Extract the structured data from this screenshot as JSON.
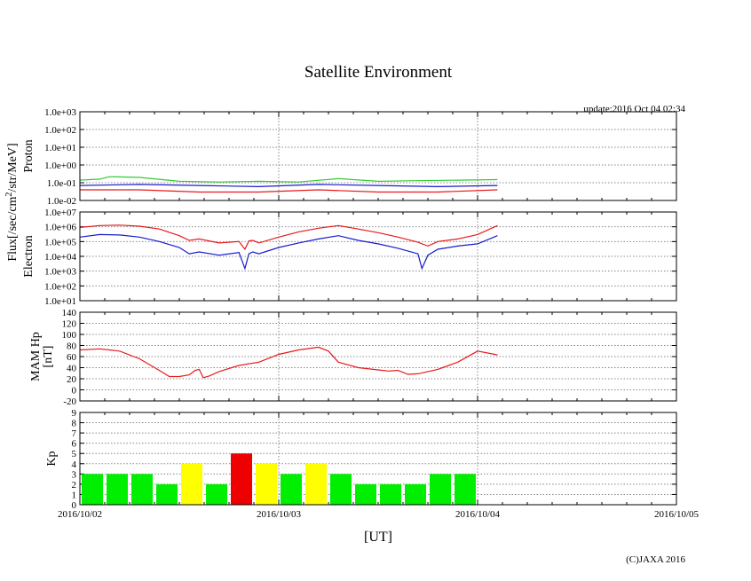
{
  "title": "Satellite Environment",
  "update": "update:2016 Oct 04 02:34",
  "copyright": "(C)JAXA 2016",
  "xlabel": "[UT]",
  "flux_label": "Flux[/sec/cm",
  "flux_sup": "2",
  "flux_label_tail": "/str/MeV]",
  "x_ticks": [
    "2016/10/02",
    "2016/10/03",
    "2016/10/04",
    "2016/10/05"
  ],
  "colors": {
    "red": "#e8191a",
    "blue": "#1a1acc",
    "green": "#33cc33",
    "kp_green": "#00ee00",
    "kp_yellow": "#ffff00",
    "kp_red": "#ee0000"
  },
  "chart_data": [
    {
      "type": "line",
      "panel": "proton",
      "ylabel": "Proton",
      "yscale": "log",
      "ylim": [
        0.01,
        1000
      ],
      "y_ticks": [
        "1.0e-02",
        "1.0e-01",
        "1.0e+00",
        "1.0e+01",
        "1.0e+02",
        "1.0e+03"
      ],
      "xlim_days": [
        0,
        3
      ],
      "series": [
        {
          "color": "green",
          "x": [
            0,
            0.1,
            0.15,
            0.3,
            0.5,
            0.7,
            0.9,
            1.1,
            1.3,
            1.5,
            1.7,
            1.9,
            2.1
          ],
          "values": [
            0.14,
            0.16,
            0.22,
            0.2,
            0.12,
            0.11,
            0.12,
            0.11,
            0.17,
            0.12,
            0.13,
            0.14,
            0.15
          ]
        },
        {
          "color": "blue",
          "x": [
            0,
            0.3,
            0.6,
            0.9,
            1.2,
            1.5,
            1.8,
            2.1
          ],
          "values": [
            0.07,
            0.08,
            0.07,
            0.06,
            0.08,
            0.07,
            0.06,
            0.07
          ]
        },
        {
          "color": "red",
          "x": [
            0,
            0.3,
            0.6,
            0.9,
            1.2,
            1.5,
            1.8,
            2.1
          ],
          "values": [
            0.04,
            0.04,
            0.03,
            0.03,
            0.04,
            0.03,
            0.03,
            0.04
          ]
        }
      ]
    },
    {
      "type": "line",
      "panel": "electron",
      "ylabel": "Electron",
      "yscale": "log",
      "ylim": [
        10,
        10000000
      ],
      "y_ticks": [
        "1.0e+01",
        "1.0e+02",
        "1.0e+03",
        "1.0e+04",
        "1.0e+05",
        "1.0e+06",
        "1.0e+07"
      ],
      "xlim_days": [
        0,
        3
      ],
      "series": [
        {
          "color": "red",
          "x": [
            0,
            0.1,
            0.2,
            0.3,
            0.4,
            0.5,
            0.55,
            0.6,
            0.7,
            0.8,
            0.83,
            0.85,
            0.87,
            0.9,
            1.0,
            1.1,
            1.2,
            1.3,
            1.4,
            1.5,
            1.6,
            1.7,
            1.75,
            1.8,
            1.9,
            2.0,
            2.1
          ],
          "values": [
            900000,
            1200000,
            1300000,
            1100000,
            700000,
            250000,
            120000,
            150000,
            80000,
            100000,
            30000,
            110000,
            120000,
            80000,
            200000,
            450000,
            800000,
            1200000,
            700000,
            400000,
            200000,
            90000,
            50000,
            100000,
            150000,
            300000,
            1200000
          ]
        },
        {
          "color": "blue",
          "x": [
            0,
            0.1,
            0.2,
            0.3,
            0.4,
            0.5,
            0.55,
            0.6,
            0.7,
            0.8,
            0.83,
            0.85,
            0.87,
            0.9,
            1.0,
            1.1,
            1.2,
            1.3,
            1.4,
            1.5,
            1.6,
            1.7,
            1.72,
            1.75,
            1.8,
            1.9,
            2.0,
            2.1
          ],
          "values": [
            200000,
            300000,
            280000,
            200000,
            100000,
            40000,
            15000,
            20000,
            12000,
            18000,
            1500,
            15000,
            20000,
            15000,
            40000,
            80000,
            150000,
            250000,
            120000,
            70000,
            35000,
            15000,
            1500,
            12000,
            30000,
            50000,
            70000,
            250000
          ]
        }
      ]
    },
    {
      "type": "line",
      "panel": "mam_hp",
      "ylabel": "MAM Hp",
      "ylabel2": "[nT]",
      "ylim": [
        -20,
        140
      ],
      "y_ticks": [
        "-20",
        "0",
        "20",
        "40",
        "60",
        "80",
        "100",
        "120",
        "140"
      ],
      "xlim_days": [
        0,
        3
      ],
      "series": [
        {
          "color": "red",
          "x": [
            0,
            0.1,
            0.2,
            0.3,
            0.4,
            0.45,
            0.5,
            0.55,
            0.58,
            0.6,
            0.62,
            0.65,
            0.7,
            0.8,
            0.9,
            1.0,
            1.1,
            1.2,
            1.25,
            1.3,
            1.4,
            1.5,
            1.55,
            1.6,
            1.65,
            1.7,
            1.8,
            1.9,
            2.0,
            2.1
          ],
          "values": [
            72,
            74,
            70,
            56,
            35,
            24,
            24,
            27,
            35,
            37,
            22,
            25,
            33,
            44,
            50,
            64,
            72,
            77,
            70,
            50,
            40,
            36,
            34,
            35,
            28,
            29,
            37,
            50,
            70,
            63
          ]
        }
      ]
    },
    {
      "type": "bar",
      "panel": "kp",
      "ylabel": "Kp",
      "ylim": [
        0,
        9
      ],
      "y_ticks": [
        "0",
        "1",
        "2",
        "3",
        "4",
        "5",
        "6",
        "7",
        "8",
        "9"
      ],
      "xlim_days": [
        0,
        3
      ],
      "bar_width_days": 0.125,
      "values": [
        3,
        3,
        3,
        2,
        4,
        2,
        5,
        4,
        3,
        4,
        3,
        2,
        2,
        2,
        3,
        3
      ],
      "bar_colors": [
        "green",
        "green",
        "green",
        "green",
        "yellow",
        "green",
        "red",
        "yellow",
        "green",
        "yellow",
        "green",
        "green",
        "green",
        "green",
        "green",
        "green"
      ]
    }
  ]
}
